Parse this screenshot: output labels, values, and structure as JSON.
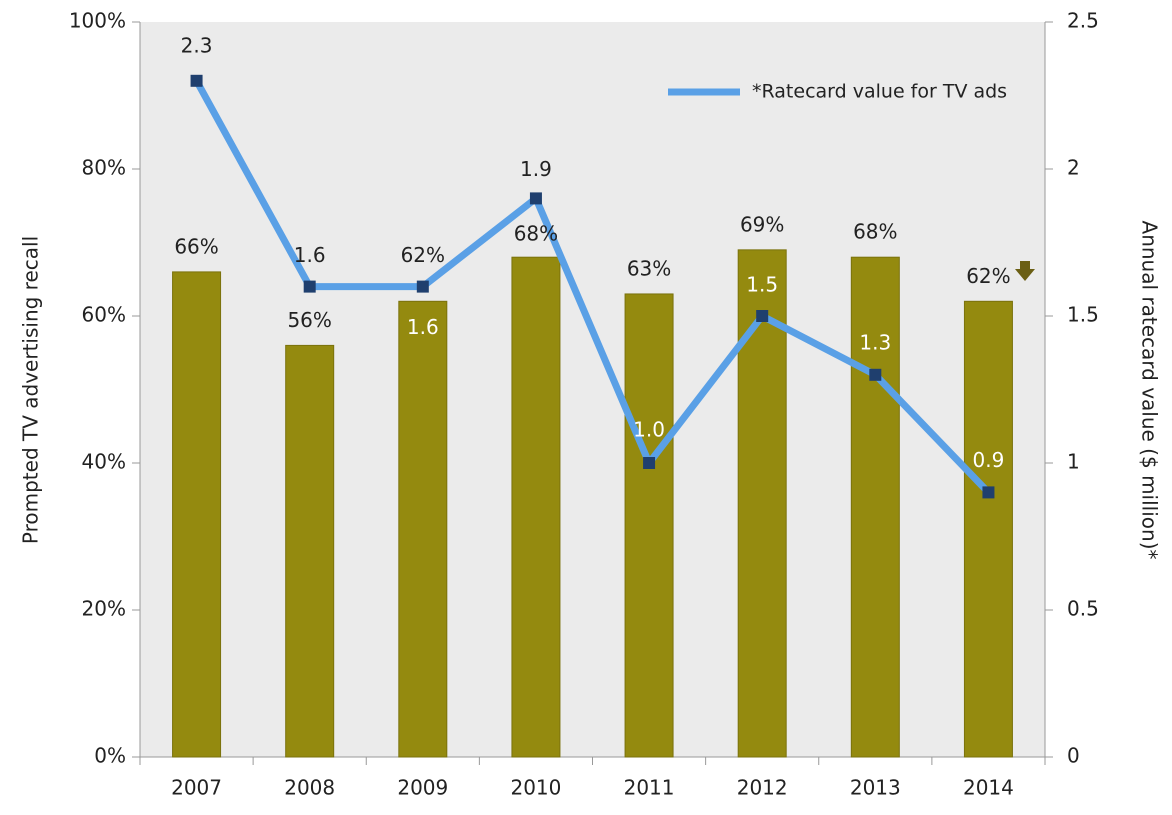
{
  "chart_data": {
    "type": "bar",
    "categories": [
      "2007",
      "2008",
      "2009",
      "2010",
      "2011",
      "2012",
      "2013",
      "2014"
    ],
    "y_label": "Prompted TV advertising recall",
    "y2_label": "Annual ratecard value ($ million)*",
    "ylim": [
      0,
      100
    ],
    "yticks": [
      {
        "value": 0,
        "label": "0%"
      },
      {
        "value": 20,
        "label": "20%"
      },
      {
        "value": 40,
        "label": "40%"
      },
      {
        "value": 60,
        "label": "60%"
      },
      {
        "value": 80,
        "label": "80%"
      },
      {
        "value": 100,
        "label": "100%"
      }
    ],
    "y2lim": [
      0,
      2.5
    ],
    "y2ticks": [
      0,
      0.5,
      1,
      1.5,
      2,
      2.5
    ],
    "legend": "top-right",
    "series": [
      {
        "type": "bar",
        "color": "#948a0f",
        "values": [
          66,
          56,
          62,
          68,
          63,
          69,
          68,
          62
        ],
        "value_labels": [
          "66%",
          "56%",
          "62%",
          "68%",
          "63%",
          "69%",
          "68%",
          "62%"
        ]
      },
      {
        "type": "line",
        "name": "*Ratecard value for TV ads",
        "axis": "y2",
        "color": "#5aa0e6",
        "marker_color": "#1f3f6e",
        "values": [
          2.3,
          1.6,
          1.6,
          1.9,
          1.0,
          1.5,
          1.3,
          0.9
        ],
        "value_labels": [
          "2.3",
          "1.6",
          "1.6",
          "1.9",
          "1.0",
          "1.5",
          "1.3",
          "0.9"
        ]
      }
    ]
  }
}
